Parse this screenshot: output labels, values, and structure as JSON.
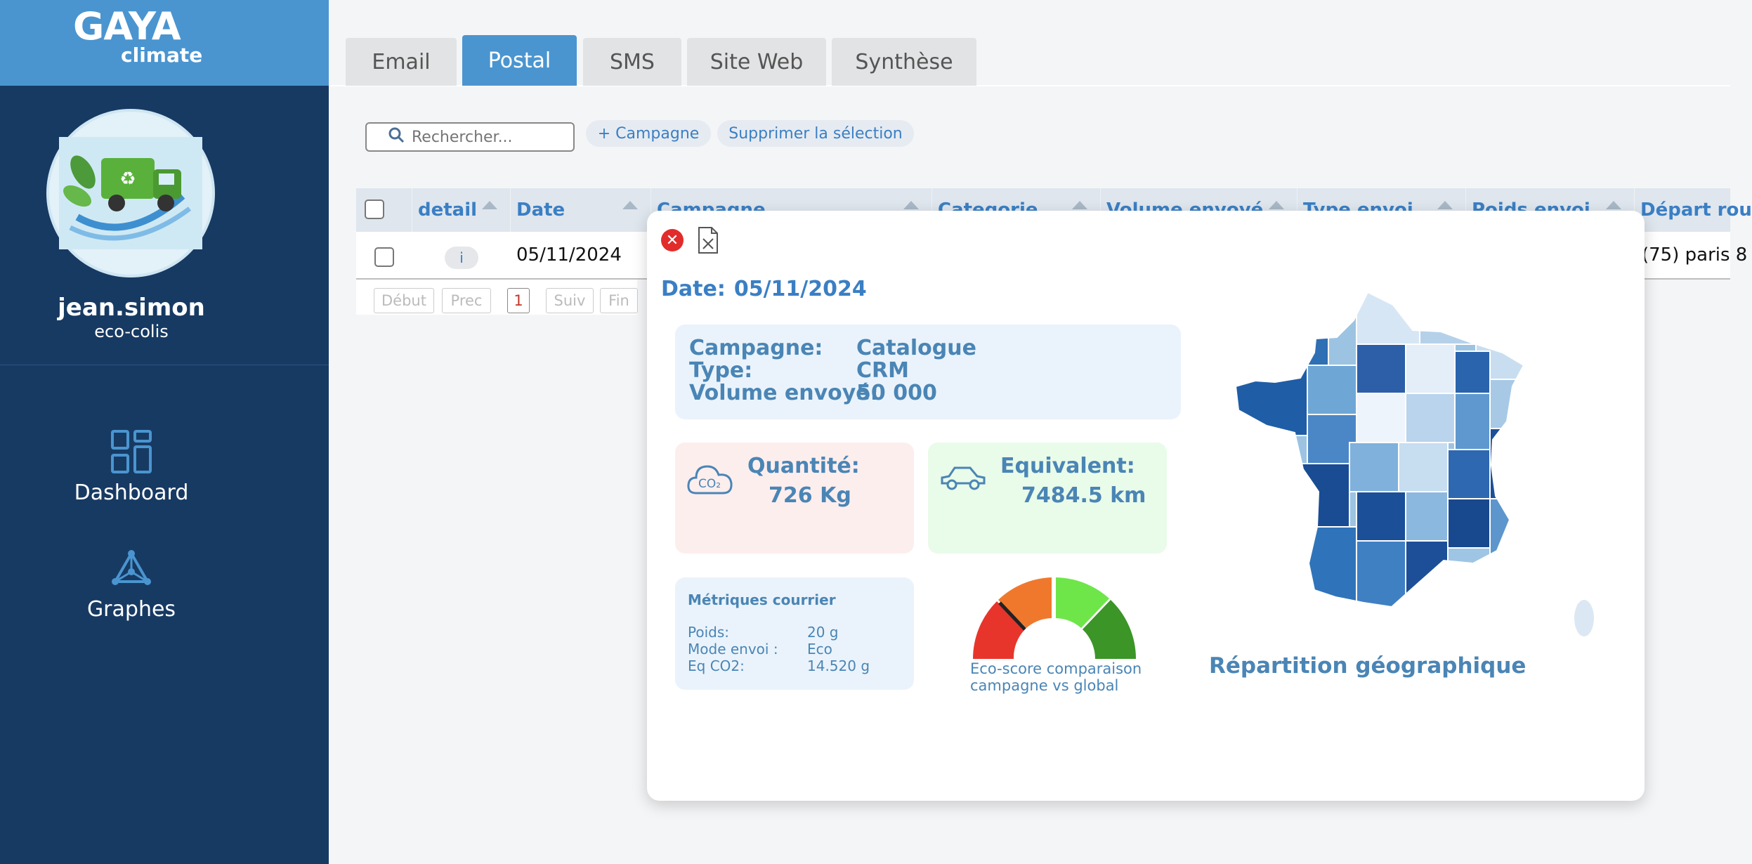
{
  "brand": {
    "name": "GAYA",
    "sub": "climate"
  },
  "user": {
    "name": "jean.simon",
    "company": "eco-colis"
  },
  "nav": [
    {
      "label": "Dashboard",
      "icon": "dashboard-icon"
    },
    {
      "label": "Graphes",
      "icon": "graph-icon"
    }
  ],
  "tabs": [
    {
      "label": "Email"
    },
    {
      "label": "Postal",
      "active": true
    },
    {
      "label": "SMS"
    },
    {
      "label": "Site Web"
    },
    {
      "label": "Synthèse"
    }
  ],
  "toolbar": {
    "search_placeholder": "Rechercher...",
    "add_label": "+ Campagne",
    "delete_label": "Supprimer la sélection"
  },
  "table": {
    "columns": [
      "detail",
      "Date",
      "Campagne",
      "Categorie",
      "Volume envoyé",
      "Type envoi",
      "Poids envoi",
      "Départ rou"
    ],
    "row": {
      "detail": "i",
      "date": "05/11/2024",
      "depart": "(75) paris 8"
    }
  },
  "pager": {
    "first": "Début",
    "prev": "Prec",
    "current": "1",
    "next": "Suiv",
    "last": "Fin"
  },
  "modal": {
    "date_label": "Date:",
    "date": "05/11/2024",
    "campagne_label": "Campagne:",
    "campagne": "Catalogue",
    "type_label": "Type:",
    "type": "CRM",
    "volume_label": "Volume envoyé:",
    "volume": "50 000",
    "quantite_label": "Quantité:",
    "quantite": "726 Kg",
    "equivalent_label": "Equivalent:",
    "equivalent": "7484.5 km",
    "metrics_title": "Métriques courrier",
    "poids_label": "Poids:",
    "poids": "20 g",
    "mode_label": "Mode envoi :",
    "mode": "Eco",
    "eq_label": "Eq CO2:",
    "eq": "14.520 g",
    "gauge_caption_1": "Eco-score comparaison",
    "gauge_caption_2": "campagne vs global",
    "map_title": "Répartition géographique",
    "colors": {
      "red": "#e8352b",
      "orange": "#f0782d",
      "lightgreen": "#6ee649",
      "darkgreen": "#3b9527"
    }
  }
}
